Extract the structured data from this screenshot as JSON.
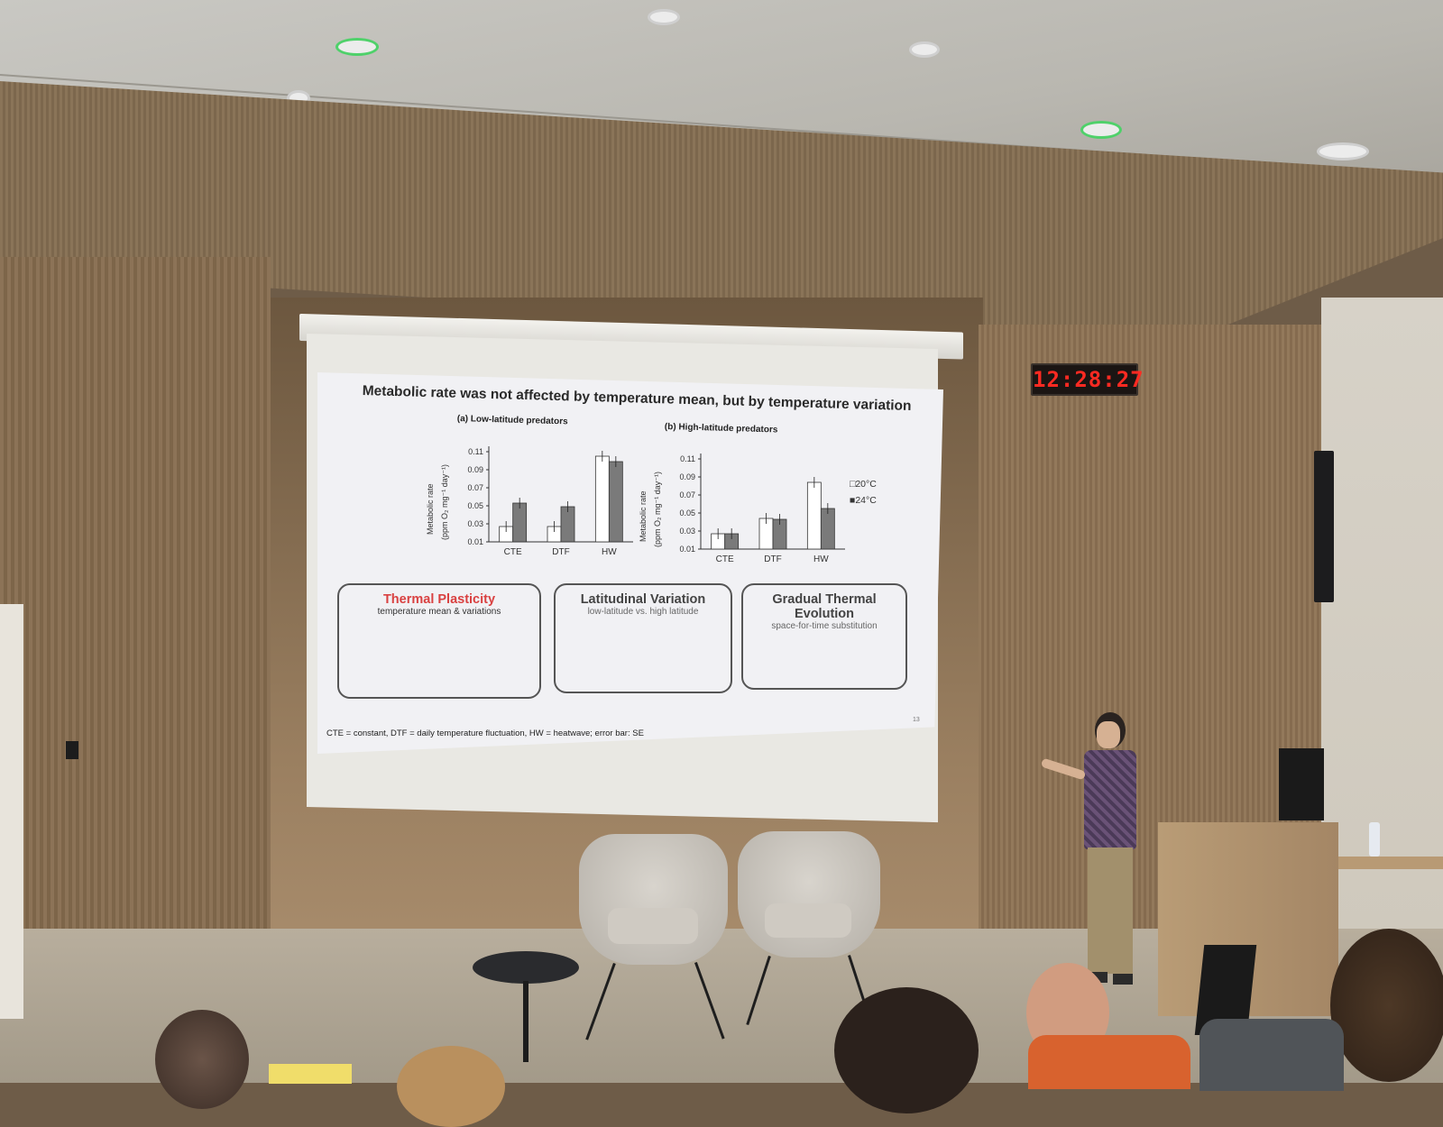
{
  "slide": {
    "title": "Metabolic rate was not affected by temperature mean, but by temperature variation",
    "panel_a_title": "(a) Low-latitude predators",
    "panel_b_title": "(b) High-latitude predators",
    "y_axis_label": "Metabolic rate",
    "y_axis_units": "(ppm O₂ mg⁻¹ day⁻¹)",
    "legend": [
      "□20°C",
      "■24°C"
    ],
    "boxes": [
      {
        "title": "Thermal Plasticity",
        "subtitle": "temperature mean & variations"
      },
      {
        "title": "Latitudinal Variation",
        "subtitle": "low-latitude vs. high latitude"
      },
      {
        "title": "Gradual Thermal Evolution",
        "subtitle": "space-for-time substitution"
      }
    ],
    "footnote": "CTE = constant, DTF = daily temperature fluctuation, HW = heatwave; error bar: SE",
    "page_number": "13"
  },
  "clock": {
    "time": "12:28:27"
  },
  "chart_data": [
    {
      "type": "bar",
      "title": "(a) Low-latitude predators",
      "categories": [
        "CTE",
        "DTF",
        "HW"
      ],
      "ylabel": "Metabolic rate (ppm O₂ mg⁻¹ day⁻¹)",
      "yticks": [
        "0.01",
        "0.03",
        "0.05",
        "0.07",
        "0.09",
        "0.11"
      ],
      "ylim": [
        0.01,
        0.11
      ],
      "series": [
        {
          "name": "20°C",
          "values": [
            0.027,
            0.027,
            0.105
          ]
        },
        {
          "name": "24°C",
          "values": [
            0.053,
            0.049,
            0.099
          ]
        }
      ]
    },
    {
      "type": "bar",
      "title": "(b) High-latitude predators",
      "categories": [
        "CTE",
        "DTF",
        "HW"
      ],
      "ylabel": "Metabolic rate (ppm O₂ mg⁻¹ day⁻¹)",
      "yticks": [
        "0.01",
        "0.03",
        "0.05",
        "0.07",
        "0.09",
        "0.11"
      ],
      "ylim": [
        0.01,
        0.11
      ],
      "series": [
        {
          "name": "20°C",
          "values": [
            0.027,
            0.044,
            0.084
          ]
        },
        {
          "name": "24°C",
          "values": [
            0.027,
            0.043,
            0.055
          ]
        }
      ]
    }
  ]
}
